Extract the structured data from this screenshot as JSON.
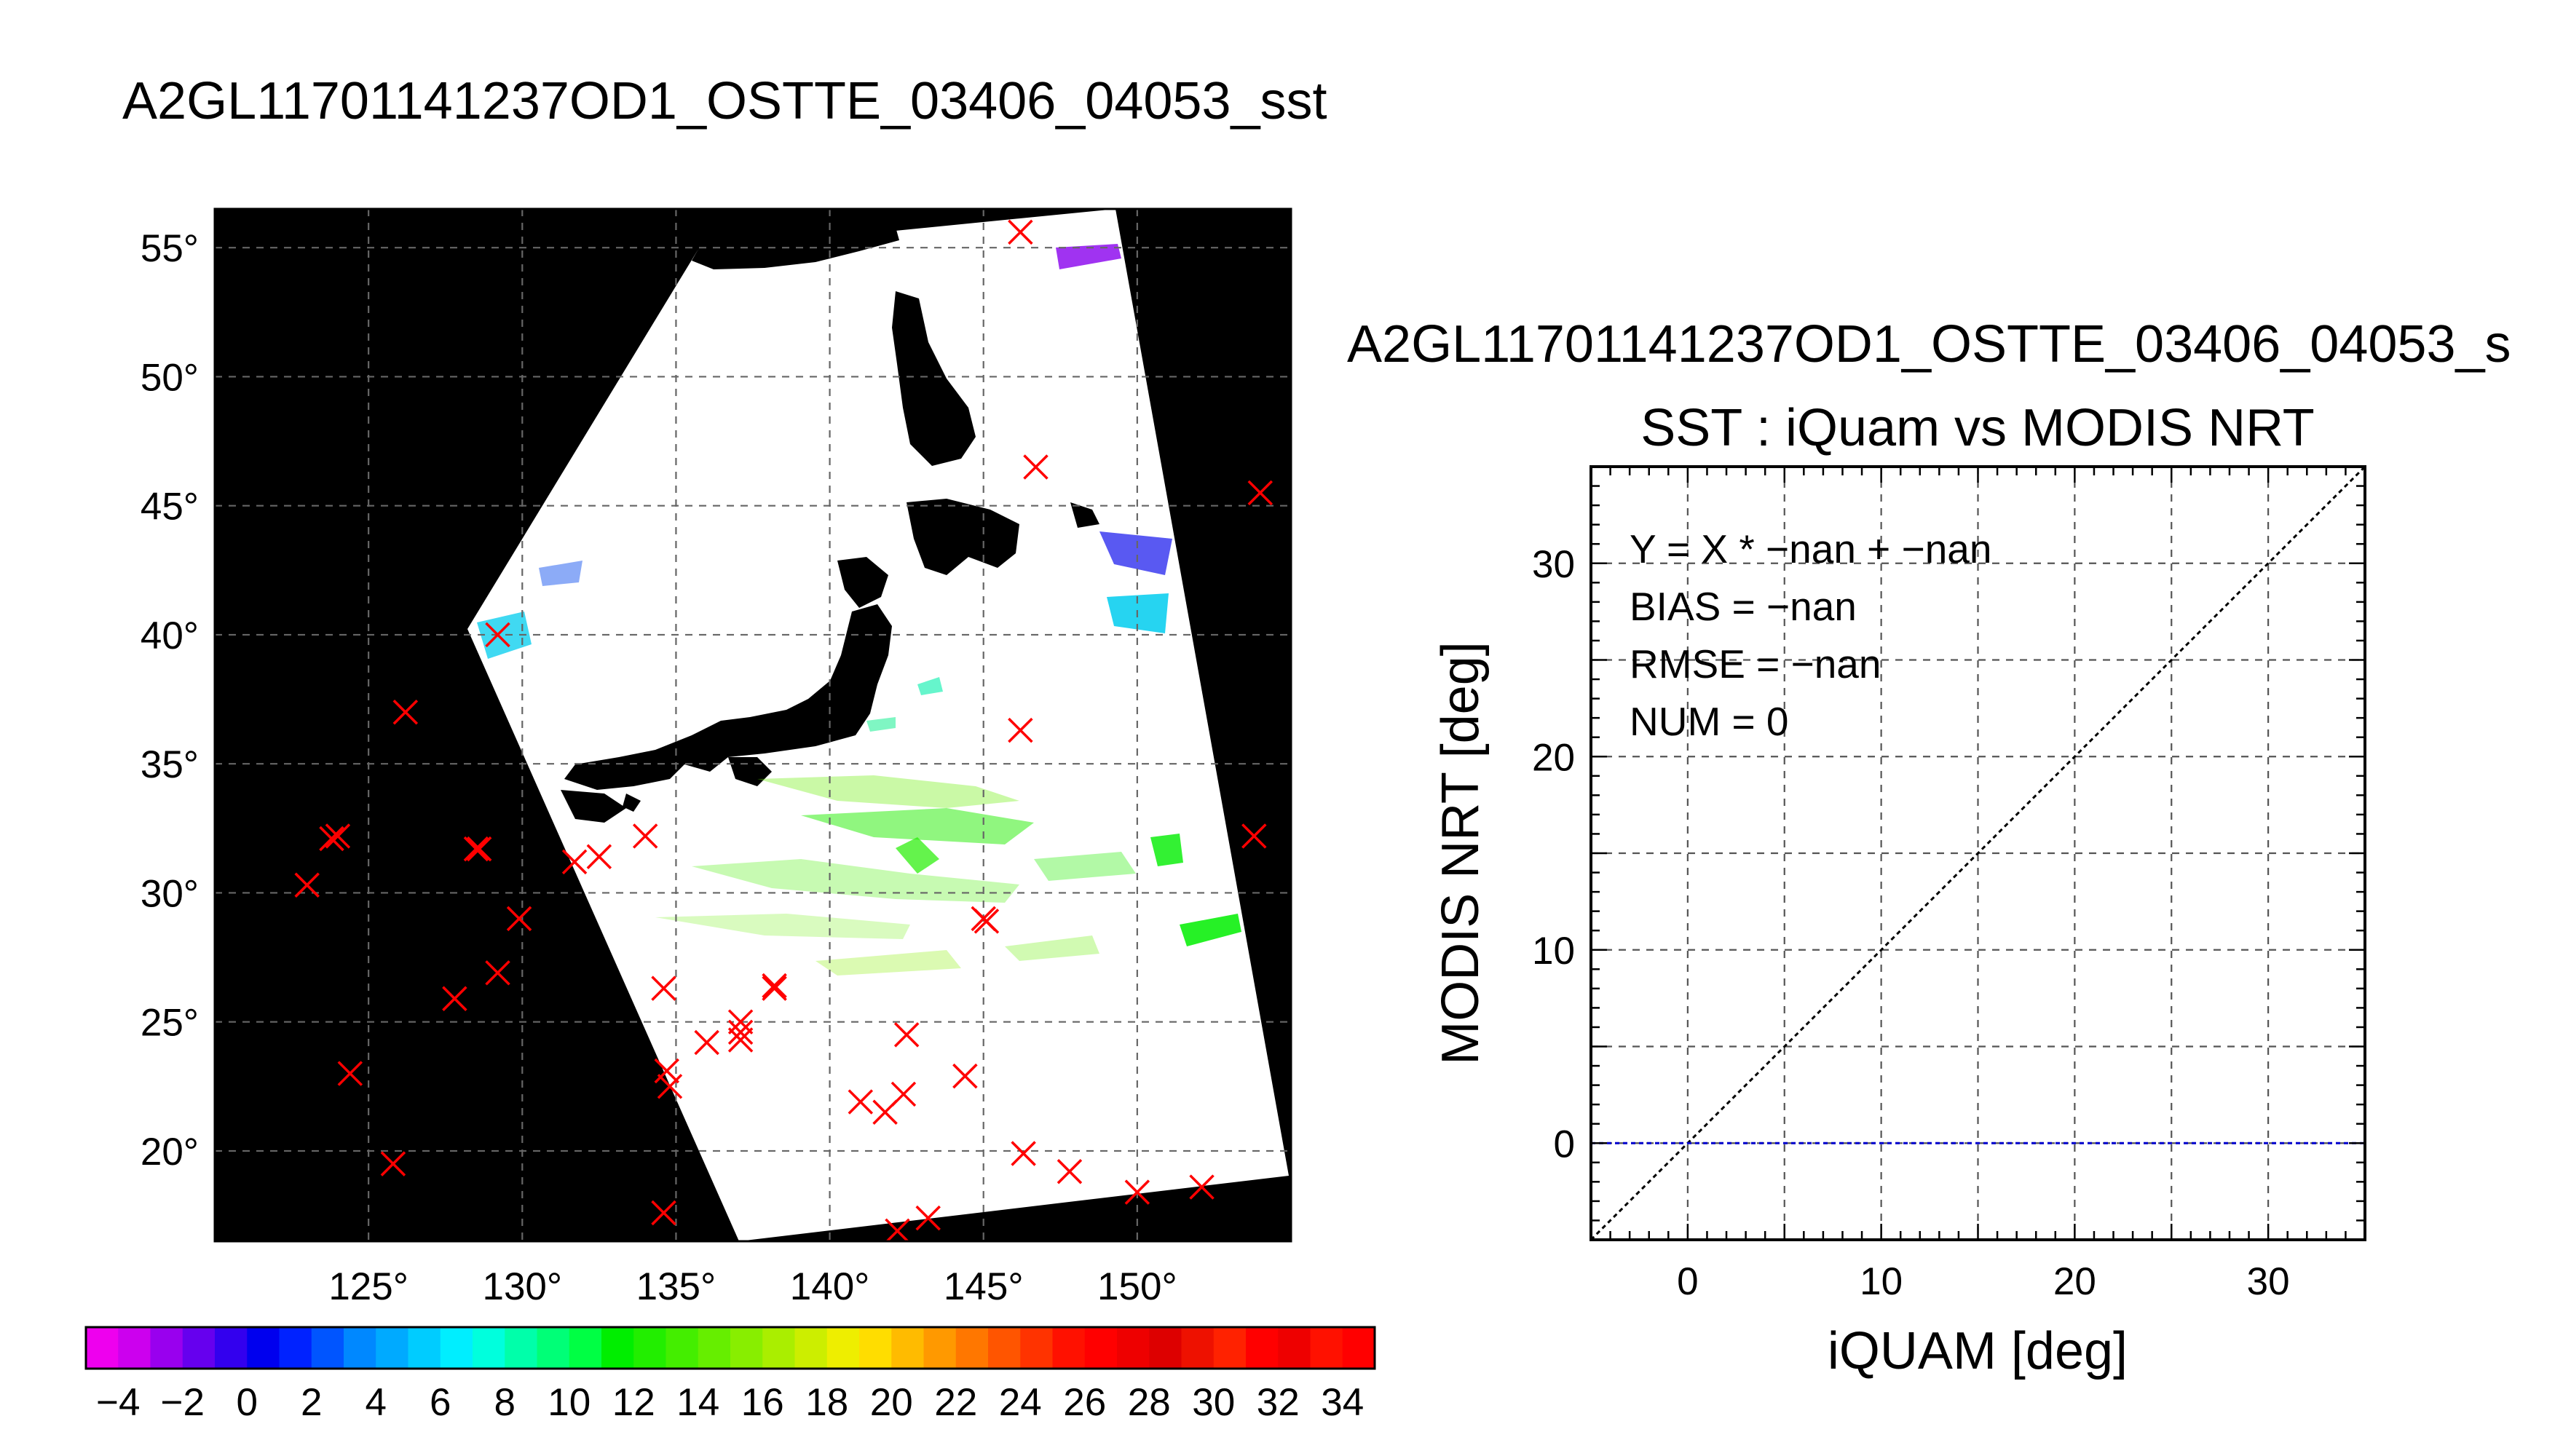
{
  "map_panel": {
    "title": "A2GL11701141237OD1_OSTTE_03406_04053_sst",
    "lon_ticks": [
      125,
      130,
      135,
      140,
      145,
      150
    ],
    "lat_ticks": [
      20,
      25,
      30,
      35,
      40,
      45,
      50,
      55
    ],
    "lon_range": [
      120,
      155
    ],
    "lat_range": [
      16.5,
      56.5
    ],
    "degree_symbol": "°",
    "matchup_marker_color": "#ff0000",
    "matchups": [
      {
        "lon": 146.2,
        "lat": 55.6
      },
      {
        "lon": 146.7,
        "lat": 46.5
      },
      {
        "lon": 154.0,
        "lat": 45.5
      },
      {
        "lon": 129.2,
        "lat": 40.0
      },
      {
        "lon": 126.2,
        "lat": 37.0
      },
      {
        "lon": 146.2,
        "lat": 36.3
      },
      {
        "lon": 123.8,
        "lat": 32.1
      },
      {
        "lon": 124.0,
        "lat": 32.2
      },
      {
        "lon": 128.5,
        "lat": 31.7
      },
      {
        "lon": 128.6,
        "lat": 31.7
      },
      {
        "lon": 134.0,
        "lat": 32.2
      },
      {
        "lon": 132.5,
        "lat": 31.4
      },
      {
        "lon": 131.7,
        "lat": 31.2
      },
      {
        "lon": 153.8,
        "lat": 32.2
      },
      {
        "lon": 123.0,
        "lat": 30.3
      },
      {
        "lon": 129.9,
        "lat": 29.0
      },
      {
        "lon": 145.1,
        "lat": 28.9
      },
      {
        "lon": 145.0,
        "lat": 29.0
      },
      {
        "lon": 129.2,
        "lat": 26.9
      },
      {
        "lon": 127.8,
        "lat": 25.9
      },
      {
        "lon": 134.6,
        "lat": 26.3
      },
      {
        "lon": 138.2,
        "lat": 26.3
      },
      {
        "lon": 138.2,
        "lat": 26.4
      },
      {
        "lon": 137.1,
        "lat": 25.0
      },
      {
        "lon": 137.1,
        "lat": 24.6
      },
      {
        "lon": 137.1,
        "lat": 24.3
      },
      {
        "lon": 136.0,
        "lat": 24.2
      },
      {
        "lon": 142.5,
        "lat": 24.5
      },
      {
        "lon": 124.4,
        "lat": 23.0
      },
      {
        "lon": 134.7,
        "lat": 23.1
      },
      {
        "lon": 134.8,
        "lat": 22.5
      },
      {
        "lon": 144.4,
        "lat": 22.9
      },
      {
        "lon": 141.0,
        "lat": 21.9
      },
      {
        "lon": 141.8,
        "lat": 21.5
      },
      {
        "lon": 142.4,
        "lat": 22.2
      },
      {
        "lon": 146.3,
        "lat": 19.9
      },
      {
        "lon": 147.8,
        "lat": 19.2
      },
      {
        "lon": 150.0,
        "lat": 18.4
      },
      {
        "lon": 152.1,
        "lat": 18.6
      },
      {
        "lon": 125.8,
        "lat": 19.5
      },
      {
        "lon": 134.6,
        "lat": 17.6
      },
      {
        "lon": 142.2,
        "lat": 16.9
      },
      {
        "lon": 143.2,
        "lat": 17.4
      }
    ]
  },
  "colorbar": {
    "tick_labels": [
      "−4",
      "−2",
      "0",
      "2",
      "4",
      "6",
      "8",
      "10",
      "12",
      "14",
      "16",
      "18",
      "20",
      "22",
      "24",
      "26",
      "28",
      "30",
      "32",
      "34"
    ],
    "range": [
      -5,
      35
    ],
    "colors": [
      "#ee00ee",
      "#cc00ee",
      "#9900ee",
      "#6600ee",
      "#3300ee",
      "#0000ee",
      "#0022ff",
      "#0055ff",
      "#0088ff",
      "#00aaff",
      "#00ccff",
      "#00eeff",
      "#00ffdd",
      "#00ffaa",
      "#00ff77",
      "#00ff44",
      "#00ee00",
      "#22ee00",
      "#44ee00",
      "#66ee00",
      "#88ee00",
      "#aaee00",
      "#ccee00",
      "#eeee00",
      "#ffdd00",
      "#ffbb00",
      "#ff9900",
      "#ff7700",
      "#ff5500",
      "#ff3300",
      "#ff1100",
      "#ff0000",
      "#ee0000",
      "#dd0000",
      "#ee1100",
      "#ff2200",
      "#ff0000",
      "#ee0000",
      "#ff1100",
      "#ff0000"
    ]
  },
  "scatter_panel": {
    "file_title": "A2GL11701141237OD1_OSTTE_03406_04053_s",
    "title": "SST : iQuam vs MODIS NRT",
    "stats": {
      "equation": "Y = X * −nan + −nan",
      "bias": "BIAS = −nan",
      "rmse": "RMSE = −nan",
      "num": "NUM = 0"
    },
    "one_to_one_color": "#000000",
    "fit_line_color": "#0000cc"
  },
  "chart_data": {
    "type": "scatter",
    "title": "SST : iQuam vs MODIS NRT",
    "xlabel": "iQUAM [deg]",
    "ylabel": "MODIS NRT [deg]",
    "xlim": [
      -5,
      35
    ],
    "ylim": [
      -5,
      35
    ],
    "xticks": [
      0,
      10,
      20,
      30
    ],
    "yticks": [
      0,
      10,
      20,
      30
    ],
    "grid": true,
    "series": [],
    "reference_lines": [
      {
        "type": "one-to-one",
        "x": [
          -5,
          35
        ],
        "y": [
          -5,
          35
        ]
      },
      {
        "type": "horizontal",
        "y": 0
      }
    ]
  }
}
